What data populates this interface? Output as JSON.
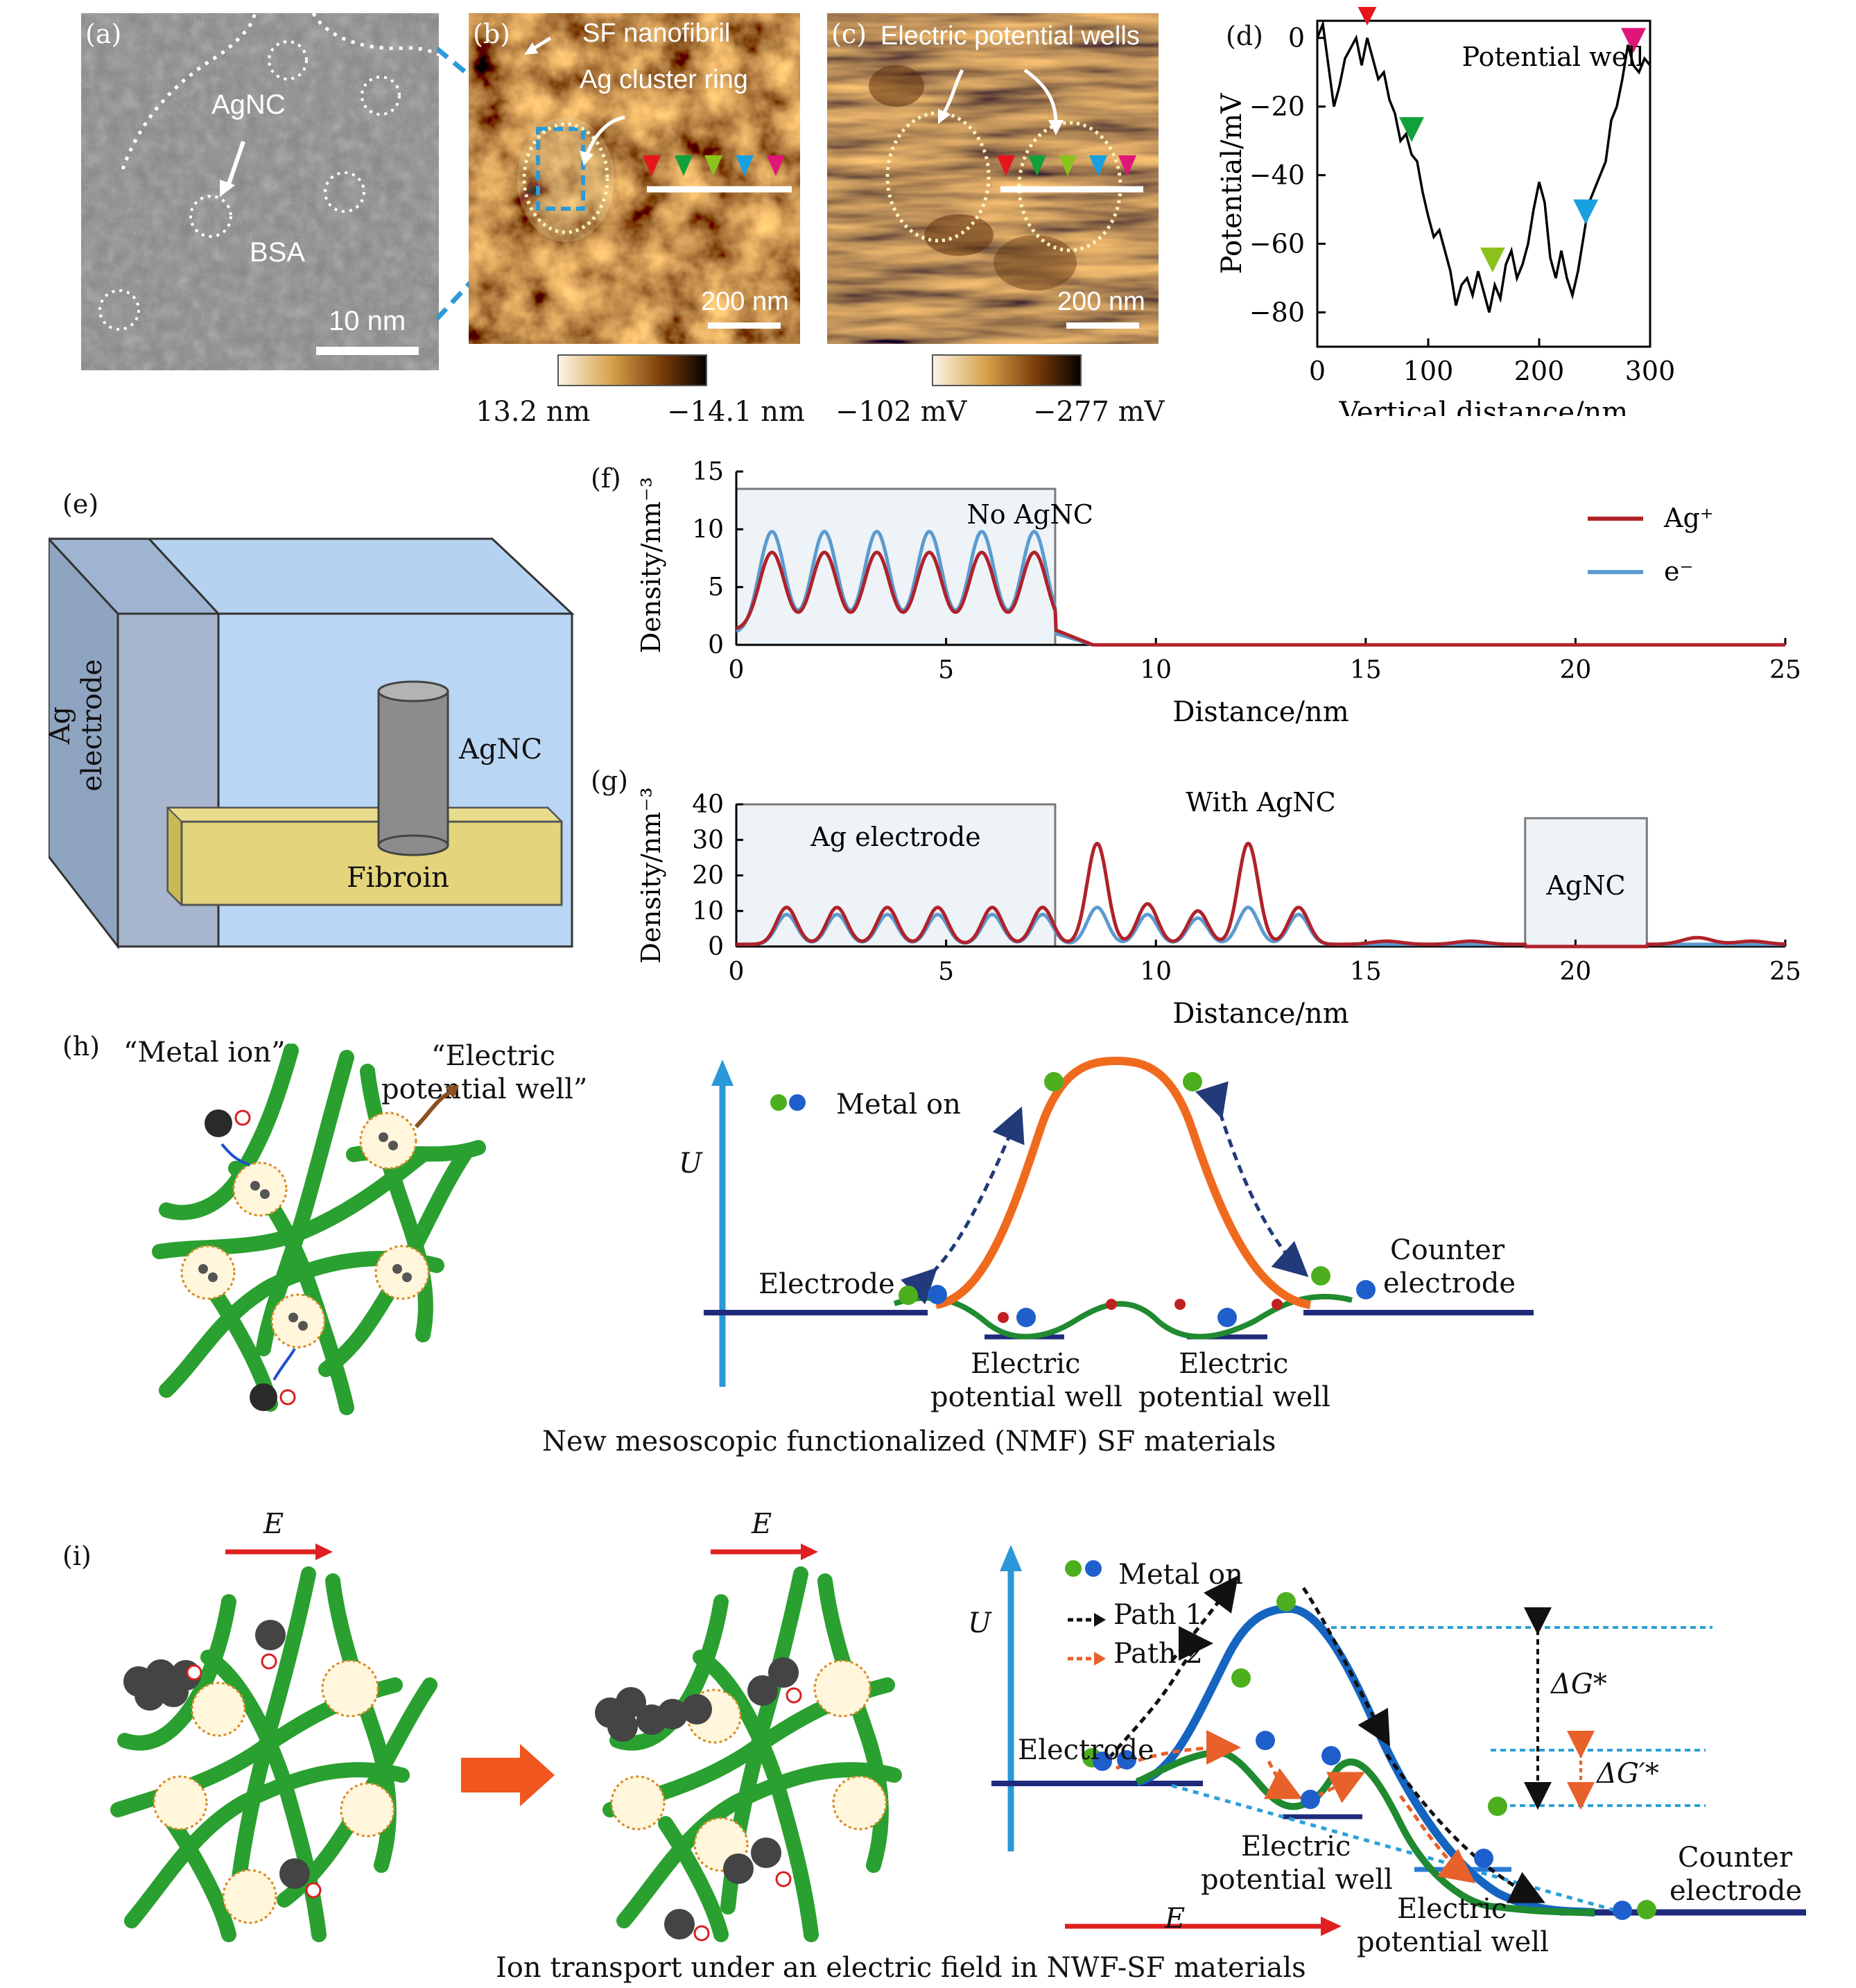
{
  "panel_labels": {
    "a": "(a)",
    "b": "(b)",
    "c": "(c)",
    "d": "(d)",
    "e": "(e)",
    "f": "(f)",
    "g": "(g)",
    "h": "(h)",
    "i": "(i)"
  },
  "panel_a": {
    "agnc_label": "AgNC",
    "bsa_label": "BSA",
    "scale_label": "10 nm"
  },
  "panel_b": {
    "title": "SF nanofibril",
    "ring_label": "Ag cluster ring",
    "scale_label": "200 nm",
    "colorbar_min": "13.2 nm",
    "colorbar_max": "−14.1 nm"
  },
  "panel_c": {
    "title": "Electric potential wells",
    "scale_label": "200 nm",
    "colorbar_min": "−102 mV",
    "colorbar_max": "−277 mV"
  },
  "panel_d": {
    "annotation": "Potential well",
    "xlabel": "Vertical distance/nm",
    "ylabel": "Potential/mV",
    "xticks": [
      "0",
      "100",
      "200",
      "300"
    ],
    "yticks": [
      "0",
      "−20",
      "−40",
      "−60",
      "−80"
    ]
  },
  "panel_e": {
    "electrode_label": "Ag electrode",
    "agnc_label": "AgNC",
    "fibroin_label": "Fibroin"
  },
  "panel_f": {
    "title": "No AgNC",
    "xlabel": "Distance/nm",
    "ylabel": "Density/nm⁻³",
    "legend_ag": "Ag⁺",
    "legend_e": "e⁻",
    "xticks": [
      "0",
      "5",
      "10",
      "15",
      "20",
      "25"
    ],
    "yticks": [
      "0",
      "5",
      "10",
      "15"
    ]
  },
  "panel_g": {
    "title": "With AgNC",
    "xlabel": "Distance/nm",
    "ylabel": "Density/nm⁻³",
    "box1_label": "Ag electrode",
    "box2_label": "AgNC",
    "xticks": [
      "0",
      "5",
      "10",
      "15",
      "20",
      "25"
    ],
    "yticks": [
      "0",
      "10",
      "20",
      "30",
      "40"
    ]
  },
  "panel_h": {
    "metal_ion_label": "“Metal ion”",
    "well_label_1": "“Electric",
    "well_label_2": "potential well”",
    "legend": "Metal on",
    "u_label": "U",
    "electrode": "Electrode",
    "counter_1": "Counter",
    "counter_2": "electrode",
    "well1_1": "Electric",
    "well1_2": "potential well",
    "well2_1": "Electric",
    "well2_2": "potential well",
    "caption": "New mesoscopic functionalized (NMF) SF materials"
  },
  "panel_i": {
    "e_label": "E",
    "legend": "Metal on",
    "path1": "Path 1",
    "path2": "Path 2",
    "u_label": "U",
    "dg1": "ΔG*",
    "dg2": "ΔG′*",
    "electrode": "Electrode",
    "well1_1": "Electric",
    "well1_2": "potential well",
    "well2_1": "Electric",
    "well2_2": "potential well",
    "counter_1": "Counter",
    "counter_2": "electrode",
    "caption": "Ion transport under an electric field in NWF-SF materials"
  },
  "colors": {
    "ag_line": "#b0222a",
    "e_line": "#5b9bd0",
    "well_curve": "#1f8a2f",
    "barrier_curve": "#f06a1e",
    "blue_curve": "#1565c0",
    "arrow_red": "#e02020",
    "marker_red": "#e8141c",
    "marker_green": "#12a03a",
    "marker_lime": "#8cc21e",
    "marker_blue": "#18a0e0",
    "marker_pink": "#e0157a"
  },
  "chart_data": [
    {
      "type": "line",
      "panel": "d",
      "title": "",
      "xlabel": "Vertical distance/nm",
      "ylabel": "Potential/mV",
      "xlim": [
        0,
        300
      ],
      "ylim": [
        -90,
        5
      ],
      "series": [
        {
          "values": [
            [
              0,
              0
            ],
            [
              5,
              4
            ],
            [
              10,
              -8
            ],
            [
              15,
              -20
            ],
            [
              20,
              -14
            ],
            [
              25,
              -6
            ],
            [
              30,
              -3
            ],
            [
              35,
              0
            ],
            [
              40,
              -8
            ],
            [
              45,
              0
            ],
            [
              50,
              -6
            ],
            [
              55,
              -12
            ],
            [
              60,
              -10
            ],
            [
              65,
              -18
            ],
            [
              70,
              -22
            ],
            [
              75,
              -30
            ],
            [
              80,
              -28
            ],
            [
              85,
              -34
            ],
            [
              90,
              -36
            ],
            [
              95,
              -45
            ],
            [
              100,
              -52
            ],
            [
              105,
              -58
            ],
            [
              110,
              -56
            ],
            [
              115,
              -62
            ],
            [
              120,
              -68
            ],
            [
              125,
              -78
            ],
            [
              130,
              -72
            ],
            [
              135,
              -70
            ],
            [
              140,
              -75
            ],
            [
              145,
              -68
            ],
            [
              150,
              -74
            ],
            [
              155,
              -80
            ],
            [
              160,
              -72
            ],
            [
              165,
              -76
            ],
            [
              170,
              -66
            ],
            [
              175,
              -62
            ],
            [
              180,
              -70
            ],
            [
              185,
              -66
            ],
            [
              190,
              -60
            ],
            [
              195,
              -50
            ],
            [
              200,
              -42
            ],
            [
              205,
              -48
            ],
            [
              210,
              -64
            ],
            [
              215,
              -70
            ],
            [
              220,
              -62
            ],
            [
              225,
              -70
            ],
            [
              230,
              -75
            ],
            [
              235,
              -68
            ],
            [
              240,
              -58
            ],
            [
              245,
              -48
            ],
            [
              250,
              -44
            ],
            [
              255,
              -40
            ],
            [
              260,
              -36
            ],
            [
              265,
              -24
            ],
            [
              270,
              -20
            ],
            [
              275,
              -12
            ],
            [
              280,
              -2
            ],
            [
              285,
              -8
            ],
            [
              290,
              -10
            ],
            [
              295,
              -6
            ],
            [
              300,
              -8
            ]
          ]
        }
      ],
      "markers": [
        {
          "x": 45,
          "color": "red"
        },
        {
          "x": 85,
          "color": "green"
        },
        {
          "x": 158,
          "color": "lime"
        },
        {
          "x": 242,
          "color": "blue"
        },
        {
          "x": 285,
          "color": "pink"
        }
      ],
      "annotation": "Potential well"
    },
    {
      "type": "line",
      "panel": "f",
      "title": "No AgNC",
      "xlabel": "Distance/nm",
      "ylabel": "Density/nm⁻³",
      "xlim": [
        0,
        25
      ],
      "ylim": [
        0,
        15
      ],
      "series": [
        {
          "name": "Ag⁺",
          "peaks_x": [
            0.85,
            2.1,
            3.35,
            4.6,
            5.85,
            7.1
          ],
          "peak_y": 8,
          "base_y": 1.3,
          "end_x": 8.5
        },
        {
          "name": "e⁻",
          "peaks_x": [
            0.85,
            2.1,
            3.35,
            4.6,
            5.85,
            7.1
          ],
          "peak_y": 9.8,
          "base_y": 1.0,
          "end_x": 8.5
        }
      ]
    },
    {
      "type": "line",
      "panel": "g",
      "title": "With AgNC",
      "xlabel": "Distance/nm",
      "ylabel": "Density/nm⁻³",
      "xlim": [
        0,
        25
      ],
      "ylim": [
        0,
        40
      ],
      "series": [
        {
          "name": "Ag⁺",
          "peaks": [
            [
              1.2,
              11
            ],
            [
              2.4,
              11
            ],
            [
              3.6,
              11
            ],
            [
              4.8,
              11
            ],
            [
              6.1,
              11
            ],
            [
              7.3,
              11
            ],
            [
              8.6,
              29
            ],
            [
              9.8,
              12
            ],
            [
              11.0,
              10
            ],
            [
              12.2,
              29
            ],
            [
              13.4,
              11
            ],
            [
              15.5,
              1.5
            ],
            [
              17.5,
              1.5
            ],
            [
              22.9,
              2.5
            ],
            [
              24.2,
              1.5
            ]
          ]
        },
        {
          "name": "e⁻",
          "peaks": [
            [
              1.2,
              9
            ],
            [
              2.4,
              9
            ],
            [
              3.6,
              9
            ],
            [
              4.8,
              9
            ],
            [
              6.1,
              9
            ],
            [
              7.3,
              9
            ],
            [
              8.6,
              11
            ],
            [
              9.8,
              9
            ],
            [
              11.0,
              8
            ],
            [
              12.2,
              11
            ],
            [
              13.4,
              9
            ]
          ]
        }
      ]
    }
  ]
}
